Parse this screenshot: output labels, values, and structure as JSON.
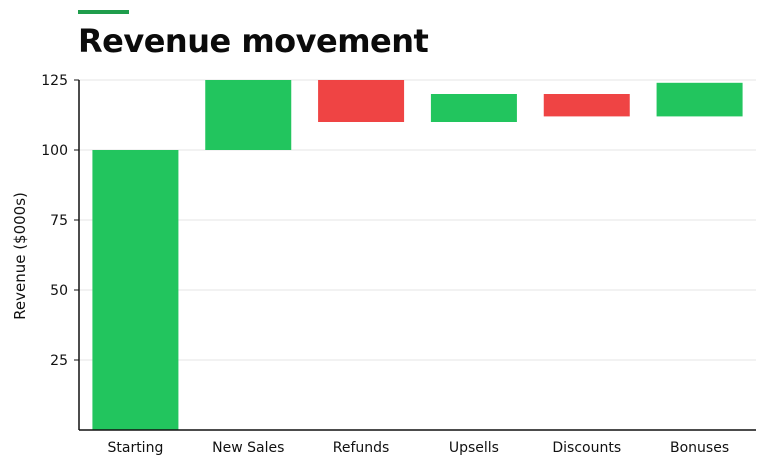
{
  "chart_data": {
    "type": "bar",
    "subtype": "waterfall",
    "title": "Revenue movement",
    "ylabel": "Revenue ($000s)",
    "xlabel": "",
    "ylim": [
      0,
      125
    ],
    "yticks": [
      25,
      50,
      75,
      100,
      125
    ],
    "grid": true,
    "categories": [
      "Starting",
      "New Sales",
      "Refunds",
      "Upsells",
      "Discounts",
      "Bonuses"
    ],
    "bars": [
      {
        "category": "Starting",
        "start": 0,
        "end": 100,
        "change": 100
      },
      {
        "category": "New Sales",
        "start": 100,
        "end": 125,
        "change": 25
      },
      {
        "category": "Refunds",
        "start": 125,
        "end": 110,
        "change": -15
      },
      {
        "category": "Upsells",
        "start": 110,
        "end": 120,
        "change": 10
      },
      {
        "category": "Discounts",
        "start": 120,
        "end": 112,
        "change": -8
      },
      {
        "category": "Bonuses",
        "start": 112,
        "end": 124,
        "change": 12
      }
    ],
    "colors": {
      "increase": "#22c55e",
      "decrease": "#ef4444",
      "accent": "#1f9d4c",
      "grid": "#e6e6e6",
      "axis": "#111111"
    }
  }
}
